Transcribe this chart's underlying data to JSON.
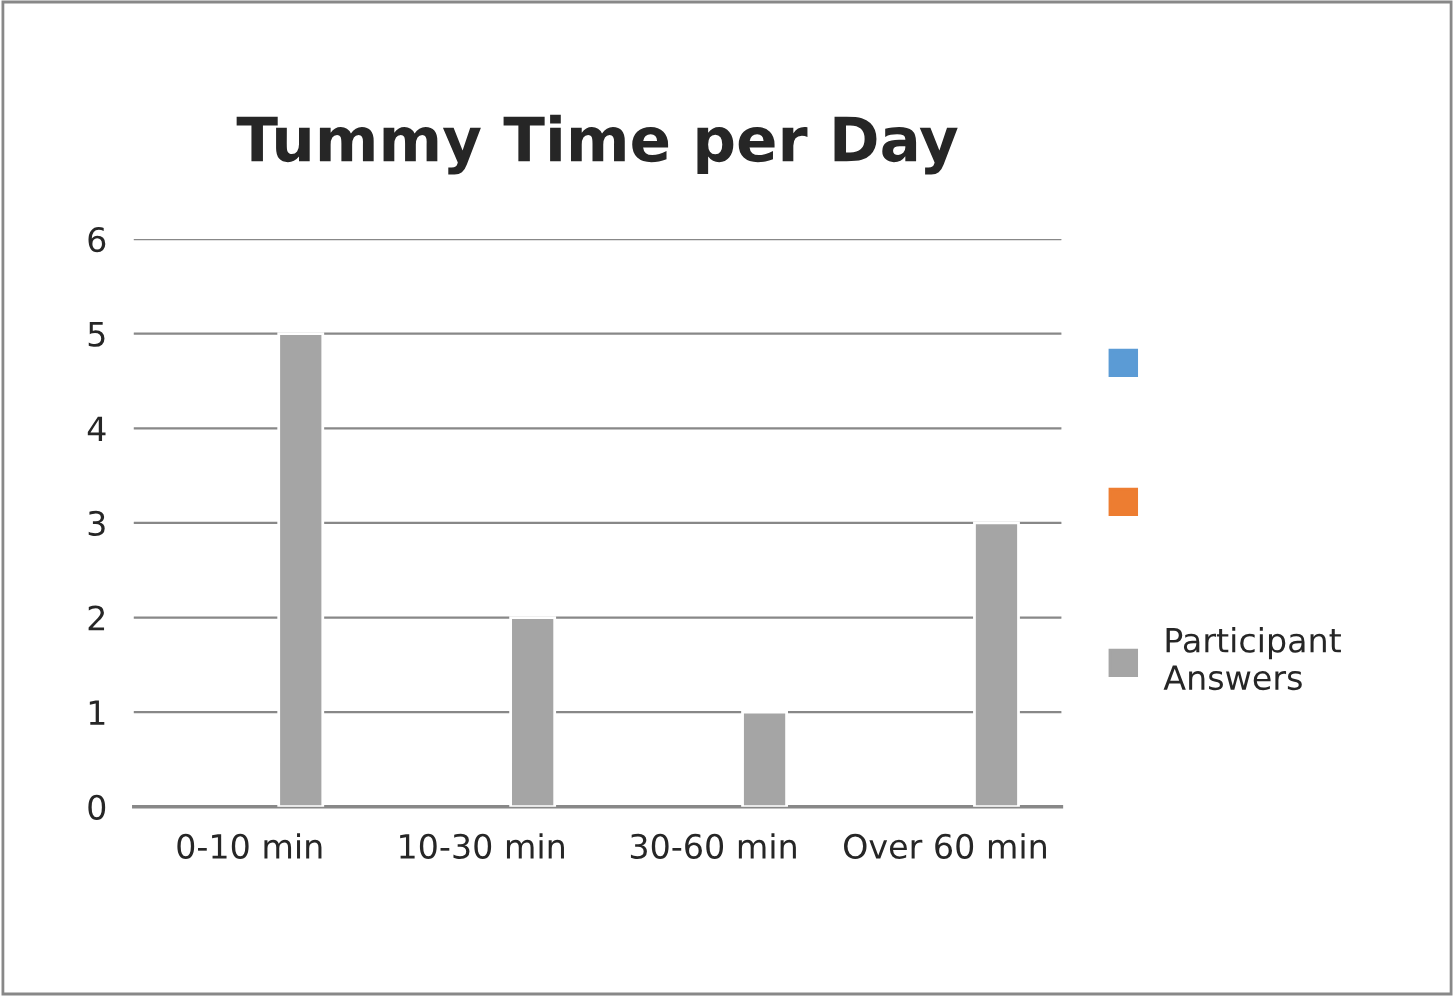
{
  "chart_data": {
    "type": "bar",
    "title": "Tummy Time per Day",
    "categories": [
      "0-10 min",
      "10-30 min",
      "30-60 min",
      "Over 60 min"
    ],
    "series": [
      {
        "color": "#5b9bd5",
        "values": [
          null,
          null,
          null,
          null
        ]
      },
      {
        "color": "#ed7d31",
        "values": [
          null,
          null,
          null,
          null
        ]
      },
      {
        "name": "Participant Answers",
        "color": "#a5a5a5",
        "values": [
          5,
          2,
          1,
          3
        ]
      }
    ],
    "ylim": [
      0,
      6
    ],
    "yticks": [
      0,
      1,
      2,
      3,
      4,
      5,
      6
    ],
    "grid": "y",
    "legend": "right"
  }
}
